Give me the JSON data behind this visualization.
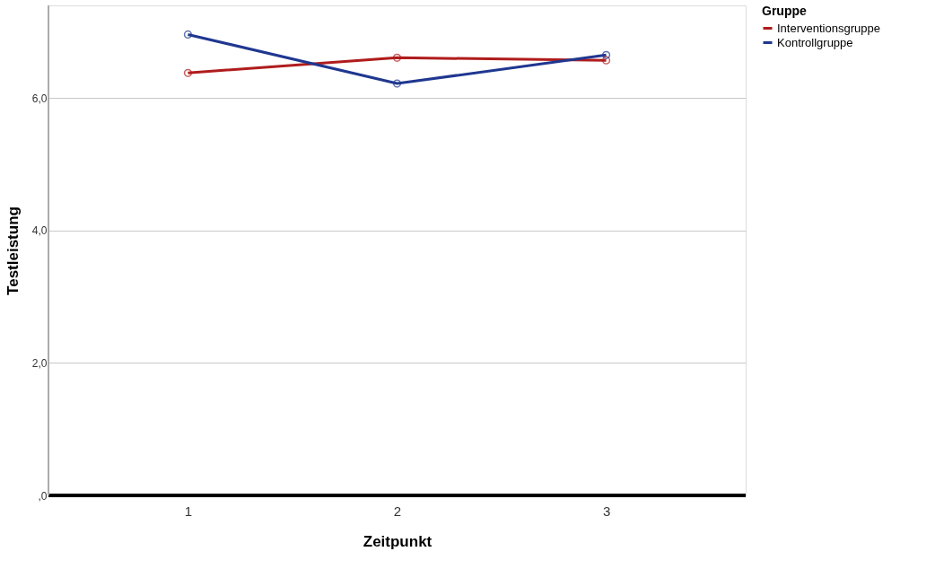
{
  "chart_data": {
    "type": "line",
    "xlabel": "Zeitpunkt",
    "ylabel": "Testleistung",
    "legend_title": "Gruppe",
    "categories": [
      "1",
      "2",
      "3"
    ],
    "series": [
      {
        "name": "Interventionsgruppe",
        "color": "#b01c1c",
        "values": [
          6.38,
          6.61,
          6.57
        ]
      },
      {
        "name": "Kontrollgruppe",
        "color": "#1f3790",
        "values": [
          6.96,
          6.22,
          6.65
        ]
      }
    ],
    "ylim": [
      0,
      7.4
    ],
    "yticks": [
      {
        "value": 0,
        "label": ",0"
      },
      {
        "value": 2,
        "label": "2,0"
      },
      {
        "value": 4,
        "label": "4,0"
      },
      {
        "value": 6,
        "label": "6,0"
      }
    ],
    "grid": "y",
    "legend": "top right",
    "marker": "circle",
    "line_style": "solid"
  }
}
